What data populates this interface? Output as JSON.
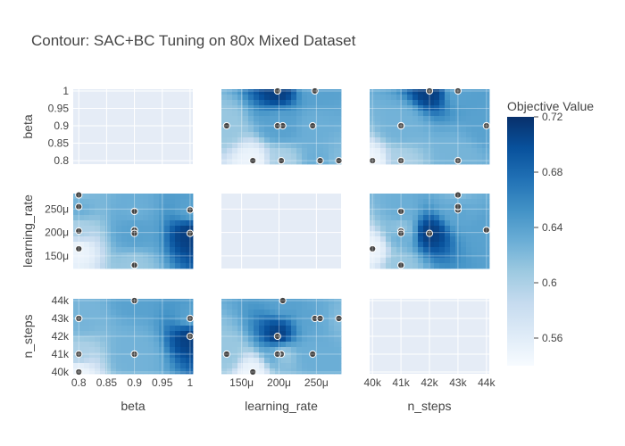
{
  "chart_data": {
    "type": "contour",
    "title": "Contour: SAC+BC Tuning on 80x Mixed Dataset",
    "params": [
      "beta",
      "learning_rate",
      "n_steps"
    ],
    "axis_titles": {
      "x": [
        "beta",
        "learning_rate",
        "n_steps"
      ],
      "y": [
        "beta",
        "learning_rate",
        "n_steps"
      ]
    },
    "axes": {
      "beta": {
        "range": [
          0.79,
          1.005
        ],
        "ticks": [
          0.8,
          0.85,
          0.9,
          0.95,
          1
        ],
        "tick_labels": [
          "0.8",
          "0.85",
          "0.9",
          "0.95",
          "1"
        ]
      },
      "learning_rate": {
        "range": [
          0.000123,
          0.000283
        ],
        "ticks": [
          0.00015,
          0.0002,
          0.00025
        ],
        "tick_labels": [
          "150μ",
          "200μ",
          "250μ"
        ]
      },
      "n_steps": {
        "range": [
          39900,
          44100
        ],
        "ticks": [
          40000,
          41000,
          42000,
          43000,
          44000
        ],
        "tick_labels": [
          "40k",
          "41k",
          "42k",
          "43k",
          "44k"
        ]
      }
    },
    "colorbar": {
      "title": "Objective Value",
      "range": [
        0.54,
        0.72
      ],
      "ticks": [
        0.56,
        0.6,
        0.64,
        0.68,
        0.72
      ],
      "tick_labels": [
        "0.56",
        "0.6",
        "0.64",
        "0.68",
        "0.72"
      ],
      "colorscale": [
        "#f7fbff",
        "#deebf7",
        "#c6dbef",
        "#9ecae1",
        "#6baed6",
        "#4292c6",
        "#2171b5",
        "#08519c",
        "#08306b"
      ]
    },
    "trials": [
      {
        "beta": 0.8,
        "learning_rate": 0.000165,
        "n_steps": 40000,
        "value": 0.55
      },
      {
        "beta": 0.8,
        "learning_rate": 0.000203,
        "n_steps": 41000,
        "value": 0.6
      },
      {
        "beta": 0.8,
        "learning_rate": 0.00028,
        "n_steps": 43000,
        "value": 0.62
      },
      {
        "beta": 0.9,
        "learning_rate": 0.00013,
        "n_steps": 41000,
        "value": 0.61
      },
      {
        "beta": 0.9,
        "learning_rate": 0.000205,
        "n_steps": 44000,
        "value": 0.64
      },
      {
        "beta": 0.9,
        "learning_rate": 0.000245,
        "n_steps": 41000,
        "value": 0.63
      },
      {
        "beta": 1,
        "learning_rate": 0.000198,
        "n_steps": 42000,
        "value": 0.71
      },
      {
        "beta": 1,
        "learning_rate": 0.000248,
        "n_steps": 43000,
        "value": 0.64
      },
      {
        "beta": 0.9,
        "learning_rate": 0.000198,
        "n_steps": 41000,
        "value": 0.64
      },
      {
        "beta": 0.8,
        "learning_rate": 0.000255,
        "n_steps": 43000,
        "value": 0.63
      }
    ]
  }
}
